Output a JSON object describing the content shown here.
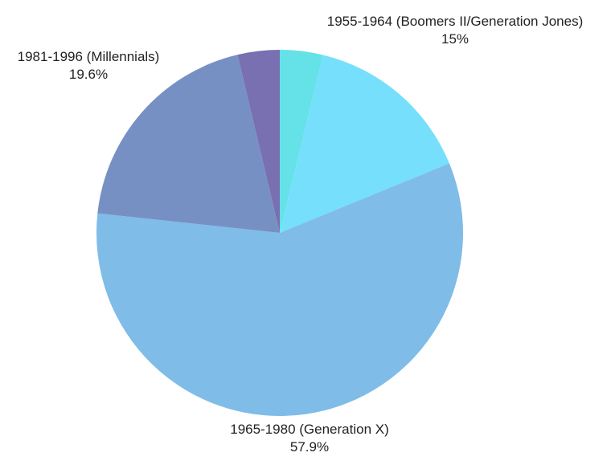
{
  "chart_data": {
    "type": "pie",
    "slices": [
      {
        "label": "",
        "value": 3.8,
        "color": "#64e2e8"
      },
      {
        "label": "1955-1964 (Boomers II/Generation Jones)",
        "value_label": "15%",
        "value": 15,
        "color": "#75dffc"
      },
      {
        "label": "1965-1980 (Generation X)",
        "value_label": "57.9%",
        "value": 57.9,
        "color": "#7fbce8"
      },
      {
        "label": "1981-1996 (Millennials)",
        "value_label": "19.6%",
        "value": 19.6,
        "color": "#7790c4"
      },
      {
        "label": "",
        "value": 3.7,
        "color": "#7870b0"
      }
    ],
    "start_angle_deg": 0,
    "direction": "clockwise",
    "legend": "none"
  }
}
